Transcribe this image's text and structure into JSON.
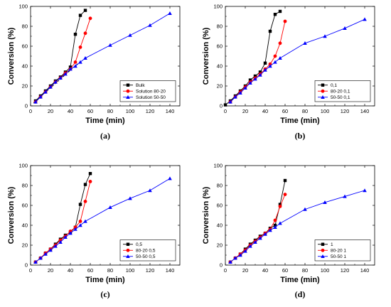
{
  "chart_data": [
    {
      "type": "line",
      "panel_label": "(a)",
      "xlabel": "Time (min)",
      "ylabel": "Conversion (%)",
      "xlim": [
        0,
        150
      ],
      "ylim": [
        0,
        100
      ],
      "xticks": [
        0,
        20,
        40,
        60,
        80,
        100,
        120,
        140
      ],
      "yticks": [
        0,
        20,
        40,
        60,
        80,
        100
      ],
      "legend_position": "bottom-right",
      "series": [
        {
          "name": "Bulk",
          "color": "#000000",
          "marker": "square",
          "x": [
            5,
            10,
            15,
            20,
            25,
            30,
            35,
            40,
            45,
            50,
            55
          ],
          "y": [
            5,
            10,
            15,
            20,
            25,
            29,
            34,
            39,
            72,
            91,
            96
          ]
        },
        {
          "name": "Solution 80-20",
          "color": "#ff0000",
          "marker": "circle",
          "x": [
            5,
            10,
            15,
            20,
            25,
            30,
            35,
            40,
            45,
            50,
            55,
            60
          ],
          "y": [
            4,
            9,
            14,
            19,
            24,
            28,
            33,
            37,
            44,
            59,
            73,
            88
          ]
        },
        {
          "name": "Solution 50-50",
          "color": "#0000ff",
          "marker": "triangle",
          "x": [
            5,
            10,
            15,
            20,
            25,
            30,
            35,
            40,
            45,
            50,
            55,
            80,
            100,
            120,
            140
          ],
          "y": [
            4,
            9,
            14,
            19,
            24,
            28,
            32,
            37,
            40,
            44,
            48,
            61,
            71,
            81,
            93
          ]
        }
      ],
      "fit_line": {
        "x": [
          3,
          48
        ],
        "y": [
          3,
          43
        ],
        "color": "#000000",
        "style": "dashed"
      }
    },
    {
      "type": "line",
      "panel_label": "(b)",
      "xlabel": "Time (min)",
      "ylabel": "Conversion (%)",
      "xlim": [
        0,
        150
      ],
      "ylim": [
        0,
        100
      ],
      "xticks": [
        0,
        20,
        40,
        60,
        80,
        100,
        120,
        140
      ],
      "yticks": [
        0,
        20,
        40,
        60,
        80,
        100
      ],
      "legend_position": "bottom-right",
      "series": [
        {
          "name": "0,1",
          "color": "#000000",
          "marker": "square",
          "x": [
            0,
            5,
            10,
            15,
            20,
            25,
            30,
            35,
            40,
            45,
            50,
            55
          ],
          "y": [
            1,
            5,
            10,
            15,
            20,
            26,
            30,
            34,
            43,
            75,
            92,
            95
          ]
        },
        {
          "name": "80-20 0,1",
          "color": "#ff0000",
          "marker": "circle",
          "x": [
            5,
            10,
            15,
            20,
            25,
            30,
            35,
            40,
            45,
            50,
            55,
            60
          ],
          "y": [
            4,
            9,
            14,
            19,
            24,
            28,
            32,
            37,
            42,
            50,
            63,
            85
          ]
        },
        {
          "name": "50-50 0,1",
          "color": "#0000ff",
          "marker": "triangle",
          "x": [
            5,
            10,
            15,
            20,
            25,
            30,
            35,
            40,
            45,
            50,
            55,
            80,
            100,
            120,
            140
          ],
          "y": [
            4,
            9,
            13,
            18,
            23,
            27,
            31,
            36,
            40,
            44,
            48,
            63,
            70,
            78,
            87
          ]
        }
      ]
    },
    {
      "type": "line",
      "panel_label": "(c)",
      "xlabel": "Time (min)",
      "ylabel": "Conversion (%)",
      "xlim": [
        0,
        150
      ],
      "ylim": [
        0,
        100
      ],
      "xticks": [
        0,
        20,
        40,
        60,
        80,
        100,
        120,
        140
      ],
      "yticks": [
        0,
        20,
        40,
        60,
        80,
        100
      ],
      "legend_position": "bottom-right",
      "series": [
        {
          "name": "0,5",
          "color": "#000000",
          "marker": "square",
          "x": [
            5,
            10,
            15,
            20,
            25,
            30,
            35,
            40,
            45,
            50,
            55,
            60
          ],
          "y": [
            3,
            7,
            12,
            16,
            21,
            26,
            30,
            33,
            38,
            61,
            81,
            92
          ]
        },
        {
          "name": "80-20 0,5",
          "color": "#ff0000",
          "marker": "circle",
          "x": [
            5,
            10,
            15,
            20,
            25,
            30,
            35,
            40,
            45,
            50,
            55,
            60
          ],
          "y": [
            3,
            7,
            12,
            16,
            20,
            25,
            29,
            34,
            38,
            44,
            64,
            84
          ]
        },
        {
          "name": "50-50 0,5",
          "color": "#0000ff",
          "marker": "triangle",
          "x": [
            5,
            10,
            15,
            20,
            25,
            30,
            35,
            40,
            45,
            50,
            55,
            80,
            100,
            120,
            140
          ],
          "y": [
            3,
            7,
            11,
            15,
            19,
            23,
            28,
            32,
            36,
            40,
            44,
            58,
            67,
            75,
            87
          ]
        }
      ]
    },
    {
      "type": "line",
      "panel_label": "(d)",
      "xlabel": "Time (min)",
      "ylabel": "Conversion (%)",
      "xlim": [
        0,
        150
      ],
      "ylim": [
        0,
        100
      ],
      "xticks": [
        0,
        20,
        40,
        60,
        80,
        100,
        120,
        140
      ],
      "yticks": [
        0,
        20,
        40,
        60,
        80,
        100
      ],
      "legend_position": "bottom-right",
      "series": [
        {
          "name": "1",
          "color": "#000000",
          "marker": "square",
          "x": [
            5,
            10,
            15,
            20,
            25,
            30,
            35,
            40,
            45,
            50,
            55,
            60
          ],
          "y": [
            3,
            7,
            11,
            16,
            21,
            25,
            29,
            32,
            37,
            40,
            61,
            85
          ]
        },
        {
          "name": "80-20 1",
          "color": "#ff0000",
          "marker": "circle",
          "x": [
            5,
            10,
            15,
            20,
            25,
            30,
            35,
            40,
            45,
            50,
            55,
            60
          ],
          "y": [
            3,
            7,
            11,
            15,
            20,
            24,
            28,
            32,
            36,
            45,
            59,
            71
          ]
        },
        {
          "name": "50-50 1",
          "color": "#0000ff",
          "marker": "triangle",
          "x": [
            5,
            10,
            15,
            20,
            25,
            30,
            35,
            40,
            45,
            50,
            55,
            80,
            100,
            120,
            140
          ],
          "y": [
            3,
            7,
            10,
            14,
            19,
            23,
            27,
            31,
            35,
            38,
            42,
            56,
            63,
            69,
            75
          ]
        }
      ]
    }
  ]
}
